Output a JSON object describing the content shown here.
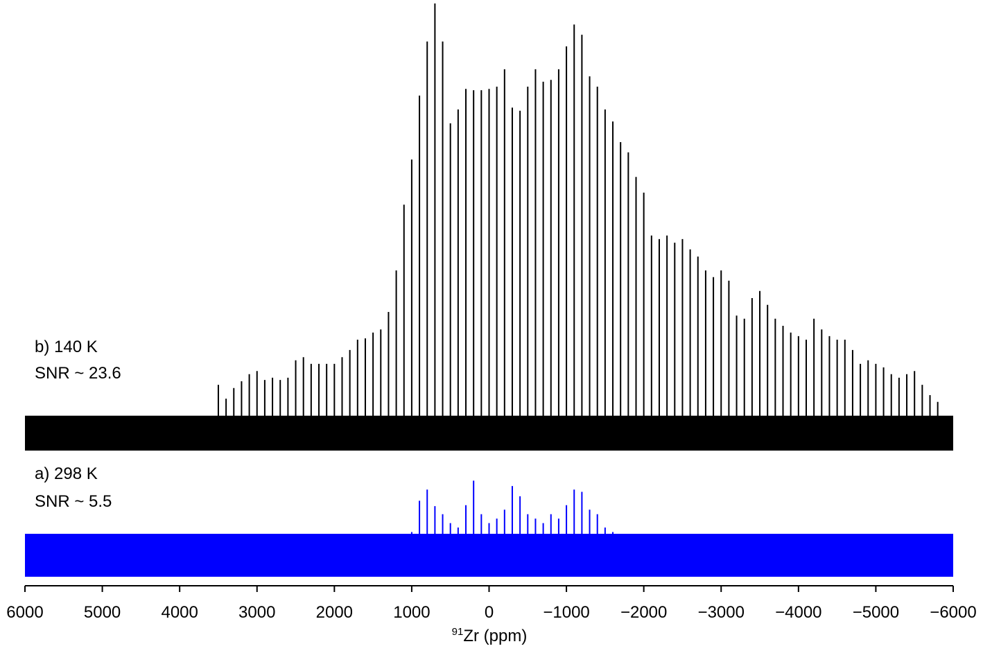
{
  "chart_data": {
    "type": "spectrum",
    "xlabel_sup": "91",
    "xlabel": "Zr (ppm)",
    "xlim": [
      6000,
      -6000
    ],
    "xticks": [
      6000,
      5000,
      4000,
      3000,
      2000,
      1000,
      0,
      {
        "value": -1000,
        "label": "−1000"
      },
      {
        "value": -2000,
        "label": "−2000"
      },
      {
        "value": -3000,
        "label": "−3000"
      },
      {
        "value": -4000,
        "label": "−4000"
      },
      {
        "value": -5000,
        "label": "−5000"
      },
      {
        "value": -6000,
        "label": "−6000"
      }
    ],
    "series": [
      {
        "name": "b) 140 K",
        "snr": "SNR ~ 23.6",
        "color": "#000000",
        "noise": 7.8,
        "x": [
          3500,
          3400,
          3300,
          3200,
          3100,
          3000,
          2900,
          2800,
          2700,
          2600,
          2500,
          2400,
          2300,
          2200,
          2100,
          2000,
          1900,
          1800,
          1700,
          1600,
          1500,
          1400,
          1300,
          1200,
          1100,
          1000,
          900,
          800,
          700,
          600,
          500,
          400,
          300,
          200,
          100,
          0,
          -100,
          -200,
          -300,
          -400,
          -500,
          -600,
          -700,
          -800,
          -900,
          -1000,
          -1100,
          -1200,
          -1300,
          -1400,
          -1500,
          -1600,
          -1700,
          -1800,
          -1900,
          -2000,
          -2100,
          -2200,
          -2300,
          -2400,
          -2500,
          -2600,
          -2700,
          -2800,
          -2900,
          -3000,
          -3100,
          -3200,
          -3300,
          -3400,
          -3500,
          -3600,
          -3700,
          -3800,
          -3900,
          -4000,
          -4100,
          -4200,
          -4300,
          -4400,
          -4500,
          -4600,
          -4700,
          -4800,
          -4900,
          -5000,
          -5100,
          -5200,
          -5300,
          -5400,
          -5500,
          -5600,
          -5700,
          -5800
        ],
        "values": [
          14.7,
          11.6,
          14.0,
          15.5,
          17.1,
          17.8,
          15.8,
          16.3,
          15.8,
          16.3,
          20.2,
          20.9,
          19.4,
          19.4,
          19.4,
          19.4,
          20.9,
          22.5,
          24.8,
          25.1,
          26.4,
          27.1,
          31.0,
          40.3,
          55.0,
          65.1,
          79.4,
          91.5,
          100,
          91.5,
          73.2,
          76.3,
          80.9,
          80.6,
          80.6,
          80.9,
          81.4,
          85.3,
          76.7,
          76.0,
          81.4,
          85.3,
          82.5,
          82.9,
          85.3,
          90.4,
          95.3,
          93.0,
          83.7,
          81.4,
          76.3,
          73.6,
          69.0,
          66.7,
          61.2,
          57.7,
          48.1,
          47.3,
          48.1,
          46.5,
          47.3,
          45.0,
          43.4,
          40.3,
          38.8,
          40.3,
          38.0,
          30.2,
          29.5,
          34.1,
          35.7,
          32.6,
          29.5,
          27.9,
          26.4,
          25.6,
          24.8,
          29.5,
          27.1,
          25.6,
          24.8,
          24.8,
          22.5,
          19.4,
          20.2,
          19.4,
          18.6,
          17.1,
          16.3,
          17.1,
          17.8,
          14.7,
          12.4,
          10.9
        ]
      },
      {
        "name": "a) 298 K",
        "snr": "SNR ~ 5.5",
        "color": "#0000ff",
        "noise": 9.6,
        "x": [
          1000,
          900,
          800,
          700,
          600,
          500,
          400,
          300,
          200,
          100,
          0,
          -100,
          -200,
          -300,
          -400,
          -500,
          -600,
          -700,
          -800,
          -900,
          -1000,
          -1100,
          -1200,
          -1300,
          -1400,
          -1500,
          -1600,
          -1700
        ],
        "values": [
          10,
          17,
          19.5,
          15.8,
          14,
          12,
          11,
          16,
          21.5,
          14,
          12,
          13,
          15,
          20.3,
          18,
          14,
          13,
          12,
          14,
          13,
          16,
          19.5,
          19,
          15,
          14,
          11,
          10,
          9
        ]
      }
    ]
  }
}
